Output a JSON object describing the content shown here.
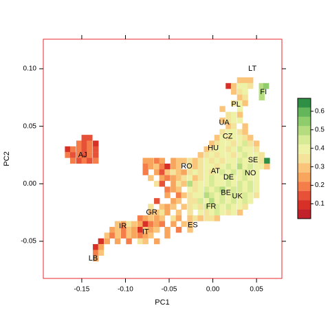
{
  "chart_data": {
    "type": "heatmap",
    "xlabel": "PC1",
    "ylabel": "PC2",
    "xlim": [
      -0.194,
      0.079
    ],
    "ylim": [
      -0.0823,
      0.1257
    ],
    "xticks": [
      {
        "value": -0.15,
        "label": "-0.15"
      },
      {
        "value": -0.1,
        "label": "-0.10"
      },
      {
        "value": -0.05,
        "label": "-0.05"
      },
      {
        "value": 0,
        "label": "0.00"
      },
      {
        "value": 0.05,
        "label": "0.05"
      }
    ],
    "yticks": [
      {
        "value": -0.05,
        "label": "-0.05"
      },
      {
        "value": 0,
        "label": "0.00"
      },
      {
        "value": 0.05,
        "label": "0.05"
      },
      {
        "value": 0.1,
        "label": "0.10"
      }
    ],
    "rows": [
      {
        "y": 0.09,
        "x": [
          0.031,
          0.037,
          0.043
        ],
        "values": [
          0.3,
          0.3,
          0.3
        ]
      },
      {
        "y": 0.085,
        "x": [
          0.018,
          0.024,
          0.031,
          0.037,
          0.043,
          0.056,
          0.061
        ],
        "values": [
          0.1,
          0.3,
          0.4,
          0.4,
          0.35,
          0.5,
          0.55
        ]
      },
      {
        "y": 0.08,
        "x": [
          0.024,
          0.031,
          0.037,
          0.056
        ],
        "values": [
          0.3,
          0.35,
          0.4,
          0.5
        ]
      },
      {
        "y": 0.075,
        "x": [
          0.031,
          0.037,
          0.056
        ],
        "values": [
          0.3,
          0.35,
          0.5
        ]
      },
      {
        "y": 0.07,
        "x": [
          0.024,
          0.031,
          0.037
        ],
        "values": [
          0.35,
          0.4,
          0.3
        ]
      },
      {
        "y": 0.065,
        "x": [
          0.011,
          0.031
        ],
        "values": [
          0.3,
          0.4
        ]
      },
      {
        "y": 0.06,
        "x": [
          0.018,
          0.024,
          0.031
        ],
        "values": [
          0.35,
          0.4,
          0.3
        ]
      },
      {
        "y": 0.055,
        "x": [
          0.011,
          0.018,
          0.024,
          0.031
        ],
        "values": [
          0.3,
          0.35,
          0.4,
          0.4
        ]
      },
      {
        "y": 0.05,
        "x": [
          0.018,
          0.024,
          0.037
        ],
        "values": [
          0.3,
          0.35,
          0.3
        ]
      },
      {
        "y": 0.045,
        "x": [
          0.011,
          0.018,
          0.024,
          0.031,
          0.037
        ],
        "values": [
          0.35,
          0.4,
          0.4,
          0.35,
          0.3
        ]
      },
      {
        "y": 0.04,
        "x": [
          -0.147,
          -0.141,
          0.005,
          0.011,
          0.018,
          0.024,
          0.031,
          0.037,
          0.043
        ],
        "values": [
          0.15,
          0.15,
          0.3,
          0.4,
          0.35,
          0.4,
          0.4,
          0.35,
          0.3
        ]
      },
      {
        "y": 0.035,
        "x": [
          -0.153,
          -0.147,
          -0.141,
          -0.134,
          -0.001,
          0.005,
          0.011,
          0.018,
          0.024,
          0.031,
          0.037,
          0.043,
          0.05
        ],
        "values": [
          0.2,
          0.15,
          0.2,
          0.1,
          0.3,
          0.35,
          0.4,
          0.4,
          0.35,
          0.4,
          0.45,
          0.35,
          0.3
        ]
      },
      {
        "y": 0.03,
        "x": [
          -0.166,
          -0.16,
          -0.153,
          -0.147,
          -0.141,
          -0.134,
          -0.007,
          -0.001,
          0.005,
          0.011,
          0.018,
          0.024,
          0.031,
          0.037,
          0.043,
          0.05
        ],
        "values": [
          0.1,
          0.2,
          0.2,
          0.15,
          0.2,
          0.15,
          0.3,
          0.35,
          0.4,
          0.4,
          0.35,
          0.4,
          0.45,
          0.4,
          0.4,
          0.35
        ]
      },
      {
        "y": 0.025,
        "x": [
          -0.166,
          -0.16,
          -0.153,
          -0.147,
          -0.141,
          -0.134,
          -0.014,
          -0.007,
          -0.001,
          0.005,
          0.011,
          0.018,
          0.024,
          0.031,
          0.037,
          0.043,
          0.05,
          0.056
        ],
        "values": [
          0.2,
          0.15,
          0.2,
          0.15,
          0.2,
          0.15,
          0.3,
          0.35,
          0.4,
          0.35,
          0.4,
          0.4,
          0.35,
          0.4,
          0.45,
          0.4,
          0.4,
          0.35
        ]
      },
      {
        "y": 0.02,
        "x": [
          -0.16,
          -0.153,
          -0.147,
          -0.141,
          -0.134,
          -0.077,
          -0.071,
          -0.064,
          -0.058,
          -0.045,
          -0.039,
          -0.033,
          -0.026,
          -0.02,
          -0.014,
          -0.007,
          -0.001,
          0.005,
          0.011,
          0.018,
          0.024,
          0.031,
          0.037,
          0.043,
          0.05,
          0.056,
          0.062
        ],
        "values": [
          0.2,
          0.15,
          0.2,
          0.15,
          0.2,
          0.25,
          0.25,
          0.2,
          0.25,
          0.25,
          0.3,
          0.3,
          0.35,
          0.3,
          0.35,
          0.4,
          0.35,
          0.4,
          0.35,
          0.4,
          0.4,
          0.45,
          0.4,
          0.4,
          0.4,
          0.35,
          0.65
        ]
      },
      {
        "y": 0.015,
        "x": [
          -0.077,
          -0.071,
          -0.064,
          -0.058,
          -0.052,
          -0.045,
          -0.039,
          -0.026,
          -0.02,
          -0.014,
          -0.007,
          -0.001,
          0.005,
          0.011,
          0.018,
          0.024,
          0.031,
          0.037,
          0.043,
          0.05,
          0.056,
          0.062
        ],
        "values": [
          0.2,
          0.25,
          0.3,
          0.2,
          0.1,
          0.25,
          0.3,
          0.35,
          0.3,
          0.35,
          0.4,
          0.4,
          0.35,
          0.4,
          0.45,
          0.4,
          0.5,
          0.4,
          0.45,
          0.4,
          0.4,
          0.3
        ]
      },
      {
        "y": 0.01,
        "x": [
          -0.077,
          -0.064,
          -0.058,
          -0.052,
          -0.045,
          -0.039,
          -0.033,
          -0.026,
          -0.02,
          -0.014,
          -0.007,
          -0.001,
          0.005,
          0.011,
          0.018,
          0.024,
          0.031,
          0.037,
          0.043,
          0.05
        ],
        "values": [
          0.2,
          0.25,
          0.15,
          0.3,
          0.35,
          0.3,
          0.25,
          0.35,
          0.4,
          0.35,
          0.4,
          0.35,
          0.4,
          0.45,
          0.4,
          0.45,
          0.4,
          0.45,
          0.4,
          0.4
        ]
      },
      {
        "y": 0.005,
        "x": [
          -0.071,
          -0.058,
          -0.052,
          -0.045,
          -0.039,
          -0.033,
          -0.026,
          -0.02,
          -0.014,
          -0.007,
          -0.001,
          0.005,
          0.011,
          0.018,
          0.024,
          0.031,
          0.037,
          0.043,
          0.05
        ],
        "values": [
          0.3,
          0.25,
          0.2,
          0.25,
          0.3,
          0.35,
          0.4,
          0.3,
          0.35,
          0.4,
          0.45,
          0.4,
          0.4,
          0.45,
          0.4,
          0.4,
          0.45,
          0.4,
          0.4
        ]
      },
      {
        "y": 0,
        "x": [
          -0.064,
          -0.058,
          -0.045,
          -0.039,
          -0.033,
          -0.026,
          -0.02,
          -0.014,
          -0.007,
          -0.001,
          0.005,
          0.011,
          0.018,
          0.024,
          0.031,
          0.037,
          0.043,
          0.05
        ],
        "values": [
          0.35,
          0.15,
          0.25,
          0.35,
          0.3,
          0.5,
          0.35,
          0.4,
          0.4,
          0.45,
          0.4,
          0.4,
          0.45,
          0.4,
          0.45,
          0.4,
          0.45,
          0.4
        ]
      },
      {
        "y": -0.005,
        "x": [
          -0.052,
          -0.045,
          -0.039,
          -0.026,
          -0.02,
          -0.014,
          -0.007,
          -0.001,
          0.005,
          0.011,
          0.018,
          0.024,
          0.031,
          0.037,
          0.043,
          0.05
        ],
        "values": [
          0.2,
          0.25,
          0.3,
          0.4,
          0.35,
          0.4,
          0.45,
          0.4,
          0.45,
          0.5,
          0.4,
          0.45,
          0.45,
          0.4,
          0.45,
          0.4
        ]
      },
      {
        "y": -0.01,
        "x": [
          -0.052,
          -0.039,
          -0.033,
          -0.026,
          -0.02,
          -0.014,
          -0.007,
          -0.001,
          0.005,
          0.011,
          0.018,
          0.024,
          0.031,
          0.037,
          0.043,
          0.05
        ],
        "values": [
          0.25,
          0.2,
          0.3,
          0.35,
          0.4,
          0.4,
          0.5,
          0.45,
          0.4,
          0.45,
          0.4,
          0.45,
          0.4,
          0.45,
          0.4,
          0.35
        ]
      },
      {
        "y": -0.015,
        "x": [
          -0.064,
          -0.045,
          -0.039,
          -0.026,
          -0.02,
          -0.014,
          -0.007,
          -0.001,
          0.005,
          0.011,
          0.018,
          0.024,
          0.031,
          0.037,
          0.043
        ],
        "values": [
          0.15,
          0.25,
          0.3,
          0.35,
          0.35,
          0.45,
          0.4,
          0.5,
          0.4,
          0.45,
          0.4,
          0.45,
          0.4,
          0.45,
          0.4
        ]
      },
      {
        "y": -0.02,
        "x": [
          -0.071,
          -0.058,
          -0.052,
          -0.045,
          -0.033,
          -0.026,
          -0.02,
          -0.014,
          -0.007,
          -0.001,
          0.005,
          0.011,
          0.018,
          0.024,
          0.031,
          0.037
        ],
        "values": [
          0.35,
          0.3,
          0.25,
          0.3,
          0.3,
          0.35,
          0.4,
          0.35,
          0.45,
          0.4,
          0.45,
          0.4,
          0.45,
          0.4,
          0.4,
          0.35
        ]
      },
      {
        "y": -0.025,
        "x": [
          -0.071,
          -0.064,
          -0.058,
          -0.052,
          -0.039,
          -0.026,
          -0.014,
          -0.007,
          -0.001,
          0.005,
          0.011,
          0.018,
          0.024,
          0.031
        ],
        "values": [
          0.3,
          0.3,
          0.35,
          0.25,
          0.3,
          0.35,
          0.4,
          0.35,
          0.4,
          0.45,
          0.4,
          0.35,
          0.4,
          0.3
        ]
      },
      {
        "y": -0.03,
        "x": [
          -0.083,
          -0.077,
          -0.071,
          -0.064,
          -0.058,
          -0.045,
          -0.039,
          -0.026,
          -0.02,
          -0.014,
          -0.007,
          -0.001,
          0.005
        ],
        "values": [
          0.2,
          0.25,
          0.3,
          0.25,
          0.3,
          0.35,
          0.25,
          0.3,
          0.35,
          0.3,
          0.35,
          0.35,
          0.3
        ]
      },
      {
        "y": -0.035,
        "x": [
          -0.109,
          -0.102,
          -0.096,
          -0.09,
          -0.083,
          -0.077,
          -0.071,
          -0.064,
          -0.058,
          -0.045,
          -0.033,
          -0.026
        ],
        "values": [
          0.3,
          0.25,
          0.35,
          0.3,
          0.25,
          0.1,
          0.2,
          0.25,
          0.2,
          0.25,
          0.3,
          0.3
        ]
      },
      {
        "y": -0.04,
        "x": [
          -0.115,
          -0.109,
          -0.102,
          -0.096,
          -0.09,
          -0.083,
          -0.077,
          -0.071,
          -0.064,
          -0.052,
          -0.039,
          -0.026
        ],
        "values": [
          0.25,
          0.3,
          0.2,
          0.3,
          0.25,
          0.1,
          0.3,
          0.25,
          0.3,
          0.25,
          0.2,
          0.3
        ]
      },
      {
        "y": -0.045,
        "x": [
          -0.121,
          -0.115,
          -0.109,
          -0.102,
          -0.096,
          -0.09,
          -0.083,
          -0.077,
          -0.071,
          -0.052
        ],
        "values": [
          0.3,
          0.2,
          0.3,
          0.2,
          0.3,
          0.25,
          0.2,
          0.25,
          0.3,
          0.25
        ]
      },
      {
        "y": -0.05,
        "x": [
          -0.128,
          -0.121,
          -0.109,
          -0.096,
          -0.083,
          -0.077,
          -0.064
        ],
        "values": [
          0.1,
          0.25,
          0.25,
          0.2,
          0.35,
          0.3,
          0.25
        ]
      },
      {
        "y": -0.055,
        "x": [
          -0.134,
          -0.128
        ],
        "values": [
          0.1,
          0.25
        ]
      },
      {
        "y": -0.06,
        "x": [
          -0.134,
          -0.128
        ],
        "values": [
          0.2,
          0.3
        ]
      },
      {
        "y": -0.065,
        "x": [
          -0.134
        ],
        "values": [
          0.25
        ]
      }
    ],
    "annotations": [
      {
        "text": "LT",
        "x": 0.0453,
        "y": 0.1
      },
      {
        "text": "FI",
        "x": 0.058,
        "y": 0.0797
      },
      {
        "text": "PL",
        "x": 0.0264,
        "y": 0.069
      },
      {
        "text": "UA",
        "x": 0.013,
        "y": 0.053
      },
      {
        "text": "CZ",
        "x": 0.017,
        "y": 0.041
      },
      {
        "text": "HU",
        "x": 0.0004,
        "y": 0.031
      },
      {
        "text": "SE",
        "x": 0.046,
        "y": 0.0205
      },
      {
        "text": "RO",
        "x": -0.03,
        "y": 0.015
      },
      {
        "text": "AT",
        "x": 0.003,
        "y": 0.011
      },
      {
        "text": "NO",
        "x": 0.043,
        "y": 0.009
      },
      {
        "text": "DE",
        "x": 0.018,
        "y": 0.0056
      },
      {
        "text": "BE",
        "x": 0.015,
        "y": -0.008
      },
      {
        "text": "UK",
        "x": 0.028,
        "y": -0.011
      },
      {
        "text": "FR",
        "x": -0.002,
        "y": -0.02
      },
      {
        "text": "GR",
        "x": -0.07,
        "y": -0.025
      },
      {
        "text": "ES",
        "x": -0.023,
        "y": -0.036
      },
      {
        "text": "IR",
        "x": -0.103,
        "y": -0.037
      },
      {
        "text": "IT",
        "x": -0.077,
        "y": -0.042
      },
      {
        "text": "LB",
        "x": -0.137,
        "y": -0.065
      },
      {
        "text": "AJ",
        "x": -0.149,
        "y": 0.025
      }
    ],
    "colorkey": {
      "lim": [
        0.02,
        0.67
      ],
      "breaks": [
        0.02,
        0.07,
        0.12,
        0.17,
        0.22,
        0.27,
        0.32,
        0.37,
        0.42,
        0.47,
        0.52,
        0.57,
        0.62,
        0.67
      ],
      "colors": [
        "#c0212b",
        "#d73027",
        "#e65138",
        "#f47d4a",
        "#f8a55e",
        "#fac57a",
        "#f4e39a",
        "#eef2a7",
        "#d7ea95",
        "#b5dc7e",
        "#8fcc6c",
        "#63b65a",
        "#2e8f45"
      ],
      "ticks": [
        0.1,
        0.2,
        0.3,
        0.4,
        0.5,
        0.6
      ]
    },
    "frame_color": "#e8262e"
  }
}
